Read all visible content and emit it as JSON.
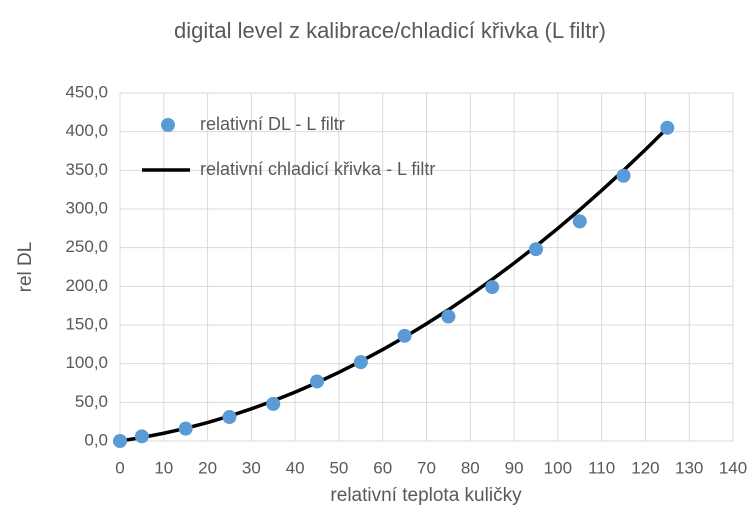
{
  "chart_data": {
    "type": "scatter",
    "title": "digital level z kalibrace/chladicí křivka (L filtr)",
    "xlabel": "relativní teplota kuličky",
    "ylabel": "rel DL",
    "xlim": [
      0,
      140
    ],
    "ylim": [
      0,
      450
    ],
    "xticks": [
      0,
      10,
      20,
      30,
      40,
      50,
      60,
      70,
      80,
      90,
      100,
      110,
      120,
      130,
      140
    ],
    "yticks": [
      {
        "value": 0,
        "label": "0,0"
      },
      {
        "value": 50,
        "label": "50,0"
      },
      {
        "value": 100,
        "label": "100,0"
      },
      {
        "value": 150,
        "label": "150,0"
      },
      {
        "value": 200,
        "label": "200,0"
      },
      {
        "value": 250,
        "label": "250,0"
      },
      {
        "value": 300,
        "label": "300,0"
      },
      {
        "value": 350,
        "label": "350,0"
      },
      {
        "value": 400,
        "label": "400,0"
      },
      {
        "value": 450,
        "label": "450,0"
      }
    ],
    "grid": true,
    "legend": "upper left",
    "series": [
      {
        "name": "relativní DL - L filtr",
        "color": "#5b9bd5",
        "type": "scatter",
        "x": [
          0,
          5,
          15,
          25,
          35,
          45,
          55,
          65,
          75,
          85,
          95,
          105,
          115,
          125
        ],
        "values": [
          0,
          6,
          16,
          31,
          48,
          77,
          102,
          136,
          161,
          199,
          248,
          284,
          343,
          405
        ]
      },
      {
        "name": "relativní chladicí křivka - L filtr",
        "color": "#000000",
        "type": "line",
        "x": [
          0,
          5,
          10,
          15,
          20,
          25,
          30,
          35,
          40,
          45,
          50,
          55,
          60,
          65,
          70,
          75,
          80,
          85,
          90,
          95,
          100,
          105,
          110,
          115,
          120,
          125
        ],
        "values": [
          0,
          4.5,
          10.0,
          16.4,
          23.8,
          32.2,
          41.6,
          51.9,
          63.2,
          75.5,
          88.8,
          103.0,
          118.2,
          134.4,
          151.6,
          169.7,
          188.8,
          208.9,
          230.0,
          252.0,
          275.0,
          299.0,
          324.0,
          349.9,
          376.8,
          404.7
        ]
      }
    ]
  }
}
